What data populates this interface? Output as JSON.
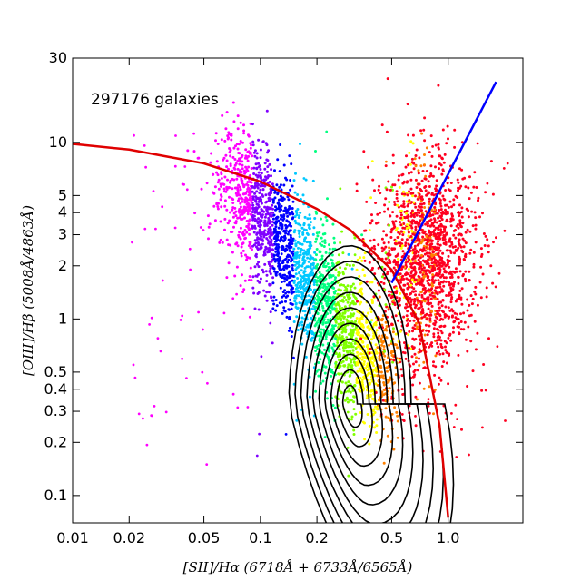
{
  "chart_data": {
    "type": "scatter",
    "title": "",
    "annotation": "297176 galaxies",
    "xlabel": "[SII]/Hα (6718Å + 6733Å/6565Å)",
    "ylabel": "[OIII]/Hβ (5008Å/4863Å)",
    "xscale": "log",
    "yscale": "log",
    "xlim": [
      0.01,
      2.5
    ],
    "ylim": [
      0.07,
      30
    ],
    "x_ticks": [
      {
        "value": 0.01,
        "label": "0.01"
      },
      {
        "value": 0.02,
        "label": "0.02"
      },
      {
        "value": 0.05,
        "label": "0.05"
      },
      {
        "value": 0.1,
        "label": "0.1"
      },
      {
        "value": 0.2,
        "label": "0.2"
      },
      {
        "value": 0.5,
        "label": "0.5"
      },
      {
        "value": 1.0,
        "label": "1.0"
      }
    ],
    "y_ticks": [
      {
        "value": 0.1,
        "label": "0.1"
      },
      {
        "value": 0.2,
        "label": "0.2"
      },
      {
        "value": 0.3,
        "label": "0.3"
      },
      {
        "value": 0.4,
        "label": "0.4"
      },
      {
        "value": 0.5,
        "label": "0.5"
      },
      {
        "value": 1,
        "label": "1"
      },
      {
        "value": 2,
        "label": "2"
      },
      {
        "value": 3,
        "label": "3"
      },
      {
        "value": 4,
        "label": "4"
      },
      {
        "value": 5,
        "label": "5"
      },
      {
        "value": 10,
        "label": "10"
      },
      {
        "value": 30,
        "label": "30"
      }
    ],
    "grid": false,
    "legend": "none",
    "point_count": 297176,
    "kewley_line": {
      "color": "#e00000",
      "x": [
        0.01,
        0.02,
        0.05,
        0.1,
        0.2,
        0.3,
        0.5,
        0.7,
        0.9,
        1.0
      ],
      "y": [
        9.8,
        9.1,
        7.6,
        6.0,
        4.2,
        3.2,
        1.9,
        0.95,
        0.25,
        0.075
      ]
    },
    "seyfert_liner_line": {
      "color": "#0000ff",
      "x": [
        0.5,
        1.8
      ],
      "y": [
        1.6,
        22.0
      ]
    },
    "scatter_colormap": [
      "#ff00ff",
      "#8000ff",
      "#0000ff",
      "#00c8ff",
      "#00ff80",
      "#80ff00",
      "#ffff00",
      "#ff8000",
      "#ff0020"
    ],
    "density_contours_center": {
      "x": 0.3,
      "y": 0.33
    },
    "density_contour_levels": 10
  }
}
